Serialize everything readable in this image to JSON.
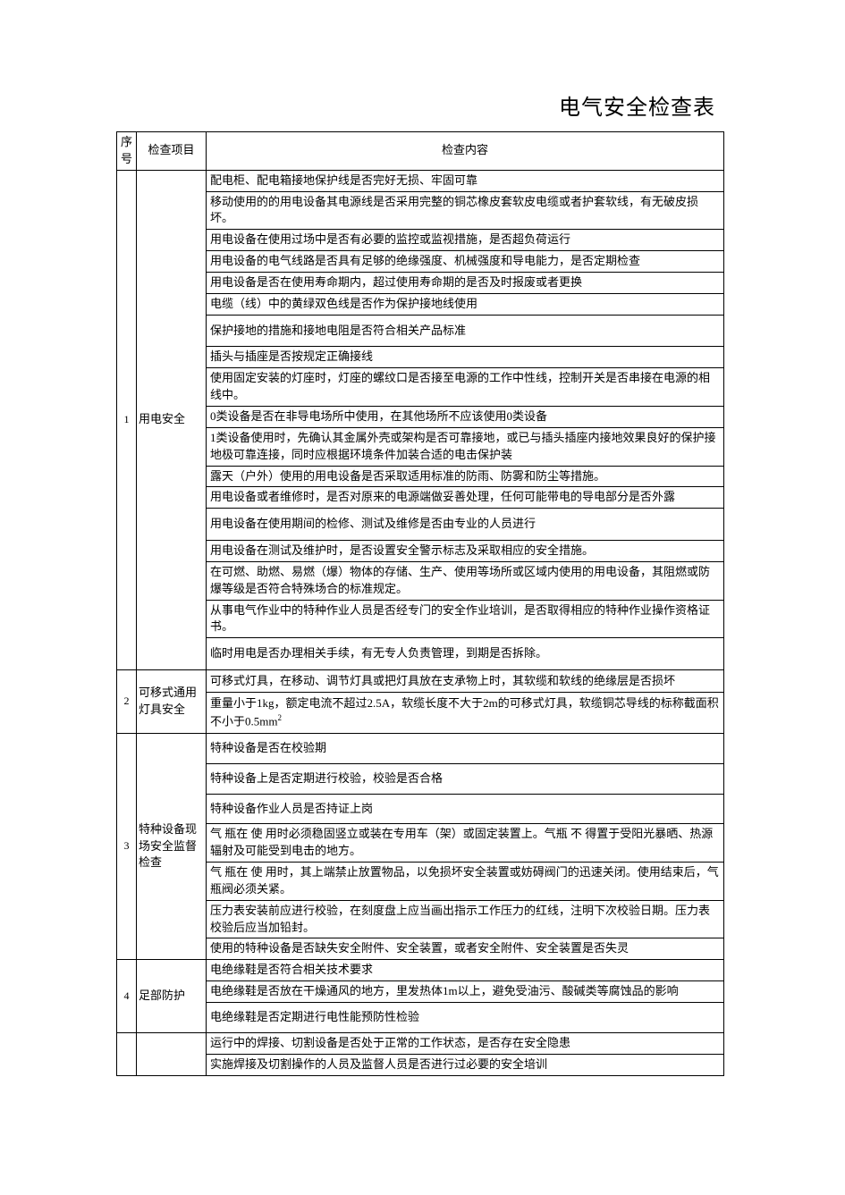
{
  "title": "电气安全检查表",
  "columns": {
    "seq": "序号",
    "item": "检查项目",
    "content": "检查内容"
  },
  "sections": [
    {
      "seq": "1",
      "item": "用电安全",
      "rows": [
        "配电柜、配电箱接地保护线是否完好无损、牢固可靠",
        "移动使用的的用电设备其电源线是否采用完整的铜芯橡皮套软皮电缆或者护套软线，有无破皮损坏。",
        "用电设备在使用过场中是否有必要的监控或监视措施，是否超负荷运行",
        "用电设备的电气线路是否具有足够的绝缘强度、机械强度和导电能力，是否定期检查",
        "用电设备是否在使用寿命期内，超过使用寿命期的是否及时报废或者更换",
        "电缆（线）中的黄绿双色线是否作为保护接地线使用",
        "保护接地的措施和接地电阻是否符合相关产品标准",
        "插头与插座是否按规定正确接线",
        "使用固定安装的灯座时，灯座的螺纹口是否接至电源的工作中性线，控制开关是否串接在电源的相线中。",
        "0类设备是否在非导电场所中使用，在其他场所不应该使用0类设备",
        "1类设备使用时，先确认其金属外壳或架构是否可靠接地，或已与插头插座内接地效果良好的保护接地极可靠连接，同时应根据环境条件加装合适的电击保护装",
        "露天（户外）使用的用电设备是否采取适用标准的防雨、防雾和防尘等措施。",
        "用电设备或者维修时，是否对原来的电源端做妥善处理，任何可能带电的导电部分是否外露",
        "用电设备在使用期间的检修、测试及维修是否由专业的人员进行",
        "用电设备在测试及维护时，是否设置安全警示标志及采取相应的安全措施。",
        "在可燃、助燃、易燃（爆）物体的存储、生产、使用等场所或区域内使用的用电设备，其阻燃或防爆等级是否符合特殊场合的标准规定。",
        "从事电气作业中的特种作业人员是否经专门的安全作业培训，是否取得相应的特种作业操作资格证书。",
        "临时用电是否办理相关手续，有无专人负责管理，到期是否拆除。"
      ]
    },
    {
      "seq": "2",
      "item": "可移式通用灯具安全",
      "rows_large": [
        "可移式灯具，在移动、调节灯具或把灯具放在支承物上时，其软缆和软线的绝缘层是否损坏",
        "重量小于1kg，额定电流不超过2.5A，软缆长度不大于2m的可移式灯具，软缆铜芯导线的标称截面积不小于0.5mm²"
      ]
    },
    {
      "seq": "3",
      "item": "特种设备现场安全监督检查",
      "rows": [
        "特种设备是否在校验期",
        "特种设备上是否定期进行校验，校验是否合格",
        "特种设备作业人员是否持证上岗",
        "气 瓶在 使 用时必须稳固竖立或装在专用车（架）或固定装置上。气瓶 不 得置于受阳光暴晒、热源辐射及可能受到电击的地方。",
        "气 瓶在 使 用时，其上端禁止放置物品，以免损坏安全装置或妨碍阀门的迅速关闭。使用结束后，气瓶阀必须关紧。",
        "压力表安装前应进行校验，在刻度盘上应当画出指示工作压力的红线，注明下次校验日期。压力表校验后应当加铅封。",
        "使用的特种设备是否缺失安全附件、安全装置，或者安全附件、安全装置是否失灵"
      ]
    },
    {
      "seq": "4",
      "item": "足部防护",
      "rows": [
        "电绝缘鞋是否符合相关技术要求",
        "电绝缘鞋是否放在干燥通风的地方，里发热体1m以上，避免受油污、酸碱类等腐蚀品的影响",
        "电绝缘鞋是否定期进行电性能预防性检验"
      ]
    },
    {
      "seq": "",
      "item": "",
      "rows": [
        "运行中的焊接、切割设备是否处于正常的工作状态，是否存在安全隐患",
        "实施焊接及切割操作的人员及监督人员是否进行过必要的安全培训"
      ]
    }
  ]
}
